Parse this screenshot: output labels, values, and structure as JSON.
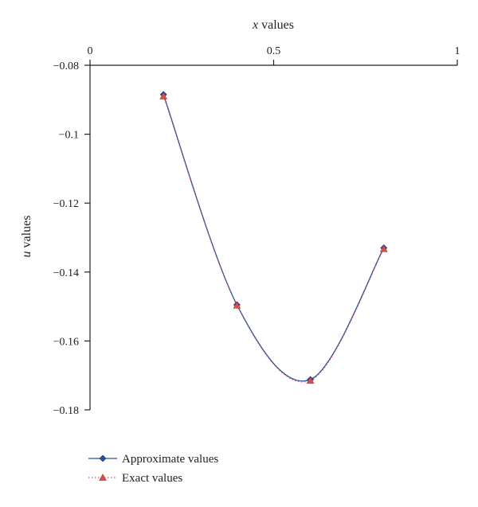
{
  "chart_data": {
    "type": "line",
    "xlabel_var": "x",
    "xlabel_rest": " values",
    "ylabel_var": "u",
    "ylabel_rest": " values",
    "xlim": [
      0,
      1
    ],
    "ylim": [
      -0.18,
      -0.08
    ],
    "x_ticks": [
      0,
      0.5,
      1
    ],
    "x_tick_labels": [
      "0",
      "0.5",
      "1"
    ],
    "y_ticks": [
      -0.08,
      -0.1,
      -0.12,
      -0.14,
      -0.16,
      -0.18
    ],
    "y_tick_labels": [
      "−0.08",
      "−0.1",
      "−0.12",
      "−0.14",
      "−0.16",
      "−0.18"
    ],
    "x_axis_position": "top",
    "grid": false,
    "legend_position": "bottom-left",
    "series": [
      {
        "name": "Approximate values",
        "color": "#2b4fa0",
        "marker": "diamond",
        "line": "solid",
        "x": [
          0.2,
          0.4,
          0.6,
          0.8
        ],
        "y": [
          -0.0885,
          -0.1495,
          -0.1712,
          -0.133
        ]
      },
      {
        "name": "Exact values",
        "color": "#d94f4f",
        "marker": "triangle",
        "line": "dotted",
        "x": [
          0.2,
          0.4,
          0.6,
          0.8
        ],
        "y": [
          -0.089,
          -0.1497,
          -0.1715,
          -0.1333
        ]
      }
    ]
  }
}
